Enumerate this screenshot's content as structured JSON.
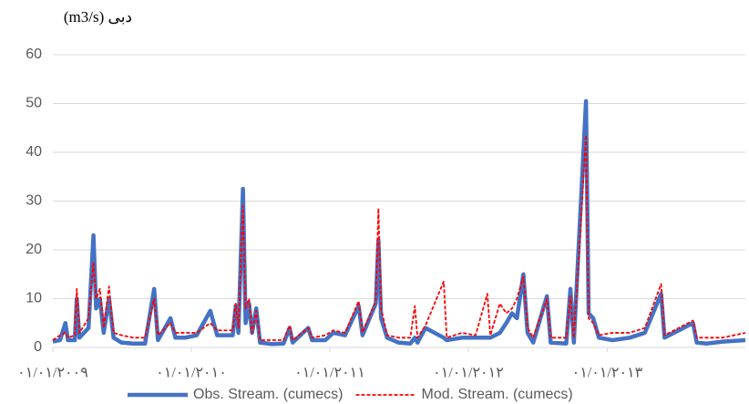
{
  "chart_data": {
    "type": "line",
    "title": "دبی (m3/s)",
    "x": [
      "2009-01-01",
      "2009-01-20",
      "2009-02-03",
      "2009-02-10",
      "2009-02-28",
      "2009-03-05",
      "2009-03-12",
      "2009-04-05",
      "2009-04-18",
      "2009-04-25",
      "2009-05-05",
      "2009-05-15",
      "2009-05-29",
      "2009-06-10",
      "2009-07-01",
      "2009-08-01",
      "2009-09-01",
      "2009-09-25",
      "2009-10-05",
      "2009-11-07",
      "2009-11-20",
      "2009-12-15",
      "2010-01-15",
      "2010-02-20",
      "2010-03-10",
      "2010-04-20",
      "2010-04-28",
      "2010-05-05",
      "2010-05-17",
      "2010-05-24",
      "2010-06-02",
      "2010-06-10",
      "2010-06-21",
      "2010-07-01",
      "2010-08-01",
      "2010-09-01",
      "2010-09-17",
      "2010-09-25",
      "2010-11-05",
      "2010-11-15",
      "2010-12-20",
      "2011-01-10",
      "2011-02-10",
      "2011-03-18",
      "2011-03-28",
      "2011-05-02",
      "2011-05-09",
      "2011-05-16",
      "2011-06-01",
      "2011-07-01",
      "2011-08-01",
      "2011-08-13",
      "2011-08-20",
      "2011-09-10",
      "2011-10-28",
      "2011-11-05",
      "2011-12-15",
      "2012-01-20",
      "2012-02-20",
      "2012-02-28",
      "2012-03-24",
      "2012-04-10",
      "2012-04-25",
      "2012-05-08",
      "2012-05-25",
      "2012-06-05",
      "2012-06-20",
      "2012-07-26",
      "2012-08-05",
      "2012-09-15",
      "2012-09-26",
      "2012-10-05",
      "2012-11-06",
      "2012-11-13",
      "2012-11-25",
      "2012-12-10",
      "2013-01-15",
      "2013-03-01",
      "2013-04-10",
      "2013-05-23",
      "2013-06-01",
      "2013-08-15",
      "2013-08-25",
      "2013-09-20",
      "2013-11-01",
      "2013-12-31"
    ],
    "series": [
      {
        "name": "Obs. Stream. (cumecs)",
        "color": "#4472c4",
        "style": "solid",
        "values": [
          1.2,
          1.5,
          5,
          1.5,
          1.5,
          10,
          2,
          4,
          23,
          8,
          10,
          3,
          10,
          2,
          1,
          0.8,
          0.8,
          12,
          1.5,
          6,
          2,
          2,
          2.5,
          7.5,
          2.5,
          2.5,
          8.5,
          3,
          32.5,
          5,
          9,
          3,
          8,
          1,
          0.7,
          0.8,
          4,
          1,
          4,
          1.5,
          1.5,
          3,
          2.5,
          8.5,
          2.5,
          9,
          22,
          6,
          2,
          1,
          0.8,
          2,
          1,
          4,
          2,
          1.5,
          2,
          2,
          2,
          2,
          3,
          5,
          7,
          6,
          15,
          3,
          1,
          10.5,
          1,
          0.8,
          12,
          1,
          50.5,
          7,
          6,
          2,
          1.5,
          2,
          3,
          11,
          2,
          5,
          1,
          0.8,
          1.2,
          1.5
        ]
      },
      {
        "name": "Mod. Stream. (cumecs)",
        "color": "#ff0000",
        "style": "dashed",
        "values": [
          1.5,
          2.5,
          3,
          2,
          2.5,
          12,
          3,
          6,
          17.5,
          10,
          12,
          4,
          12.5,
          3,
          2.5,
          2,
          2,
          10,
          2.5,
          5,
          3,
          3,
          3,
          5,
          3.5,
          3.5,
          9,
          4,
          29,
          8,
          10,
          3,
          7.5,
          1.5,
          1.5,
          1.5,
          4.5,
          1.5,
          4,
          2,
          2.5,
          3.5,
          3,
          9.5,
          3,
          9.5,
          28.5,
          8,
          2.5,
          2,
          2,
          8.5,
          2,
          4.5,
          13.5,
          2,
          3,
          2.5,
          11,
          2.5,
          9,
          7,
          8,
          10,
          14.5,
          4,
          2,
          10,
          2,
          2,
          10.5,
          2,
          43.5,
          6,
          5,
          2.5,
          3,
          3,
          4,
          13,
          2.5,
          5.5,
          2,
          2,
          2,
          3
        ]
      }
    ],
    "xlim": [
      "2009-01-01",
      "2013-12-31"
    ],
    "xticks": [
      {
        "value": "2009-01-01",
        "label": "٠١/٠١/٢٠٠٩"
      },
      {
        "value": "2010-01-01",
        "label": "٠١/٠١/٢٠١٠"
      },
      {
        "value": "2011-01-01",
        "label": "٠١/٠١/٢٠١١"
      },
      {
        "value": "2012-01-01",
        "label": "٠١/٠١/٢٠١٢"
      },
      {
        "value": "2013-01-01",
        "label": "٠١/٠١/٢٠١٣"
      }
    ],
    "ylim": [
      0,
      60
    ],
    "yticks": [
      0,
      10,
      20,
      30,
      40,
      50,
      60
    ],
    "grid": true,
    "legend": "bottom"
  }
}
